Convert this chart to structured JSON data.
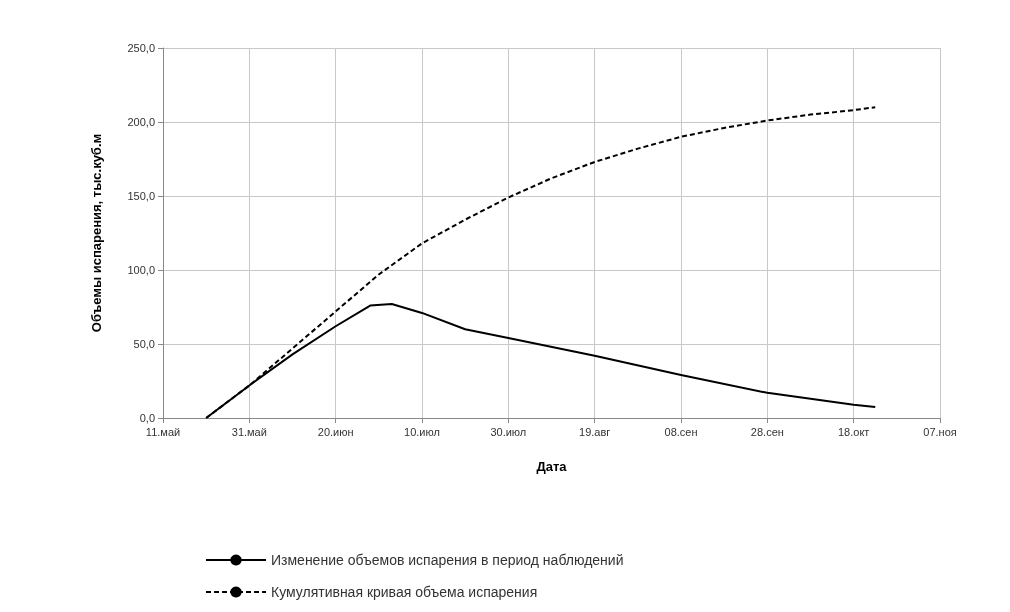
{
  "chart_data": {
    "type": "line",
    "xlabel": "Дата",
    "ylabel": "Объемы испарения, тыс.куб.м",
    "xlim": [
      "--05-11",
      "--11-07"
    ],
    "xticks": [
      {
        "value": "--05-11",
        "label": "11.май"
      },
      {
        "value": "--05-31",
        "label": "31.май"
      },
      {
        "value": "--06-20",
        "label": "20.июн"
      },
      {
        "value": "--07-10",
        "label": "10.июл"
      },
      {
        "value": "--07-30",
        "label": "30.июл"
      },
      {
        "value": "--08-19",
        "label": "19.авг"
      },
      {
        "value": "--09-08",
        "label": "08.сен"
      },
      {
        "value": "--09-28",
        "label": "28.сен"
      },
      {
        "value": "--10-18",
        "label": "18.окт"
      },
      {
        "value": "--11-07",
        "label": "07.ноя"
      }
    ],
    "ylim": [
      0,
      250
    ],
    "yticks": [
      {
        "value": 0,
        "label": "0,0"
      },
      {
        "value": 50,
        "label": "50,0"
      },
      {
        "value": 100,
        "label": "100,0"
      },
      {
        "value": 150,
        "label": "150,0"
      },
      {
        "value": 200,
        "label": "200,0"
      },
      {
        "value": 250,
        "label": "250,0"
      }
    ],
    "grid": true,
    "legend": "bottom",
    "marker": "none",
    "series": [
      {
        "name": "Изменение объемов испарения в период наблюдений",
        "color": "#000000",
        "line_style": "solid",
        "x": [
          "--05-21",
          "--05-31",
          "--06-10",
          "--06-20",
          "--06-28",
          "--07-03",
          "--07-10",
          "--07-20",
          "--07-30",
          "--08-19",
          "--09-08",
          "--09-28",
          "--10-18",
          "--10-23"
        ],
        "values": [
          0,
          22,
          43,
          62,
          76,
          77,
          71,
          60,
          54,
          42,
          29,
          17,
          9,
          7.5
        ]
      },
      {
        "name": "Кумулятивная кривая объема испарения",
        "color": "#000000",
        "line_style": "dashed",
        "x": [
          "--05-21",
          "--05-31",
          "--06-10",
          "--06-20",
          "--06-30",
          "--07-10",
          "--07-20",
          "--07-30",
          "--08-09",
          "--08-19",
          "--08-29",
          "--09-08",
          "--09-18",
          "--09-28",
          "--10-08",
          "--10-18",
          "--10-23"
        ],
        "values": [
          0,
          22,
          47,
          72,
          97,
          118,
          134,
          149,
          162,
          173,
          182,
          190,
          196,
          201,
          205,
          208,
          210
        ]
      }
    ]
  }
}
